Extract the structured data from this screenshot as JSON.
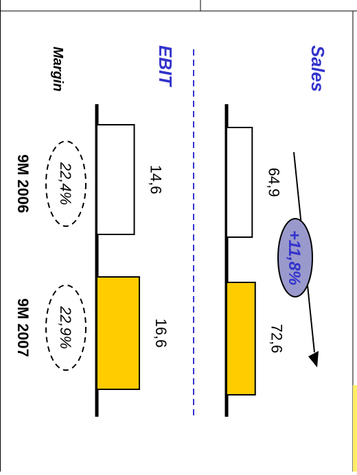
{
  "chart_data": [
    {
      "type": "bar",
      "title": "Sales",
      "categories": [
        "9M 2006",
        "9M 2007"
      ],
      "values": [
        64.9,
        72.6
      ],
      "value_labels": [
        "64,9",
        "72,6"
      ],
      "growth_label": "+11,8%",
      "ylim": [
        0,
        80
      ]
    },
    {
      "type": "bar",
      "title": "EBIT",
      "categories": [
        "9M 2006",
        "9M 2007"
      ],
      "values": [
        14.6,
        16.6
      ],
      "value_labels": [
        "14,6",
        "16,6"
      ],
      "margin_title": "Margin",
      "margin_labels": [
        "22,4%",
        "22,9%"
      ],
      "ylim": [
        0,
        16.6
      ]
    }
  ],
  "orientation": "rotated 90° clockwise",
  "colors": {
    "bar_2006": "#ffffff",
    "bar_2007": "#ffcc00",
    "title": "#3333cc",
    "divider": "#3333cc",
    "growth_oval": "#9999cc",
    "axis": "#000000",
    "sidebar_strip": "#ffee66"
  }
}
